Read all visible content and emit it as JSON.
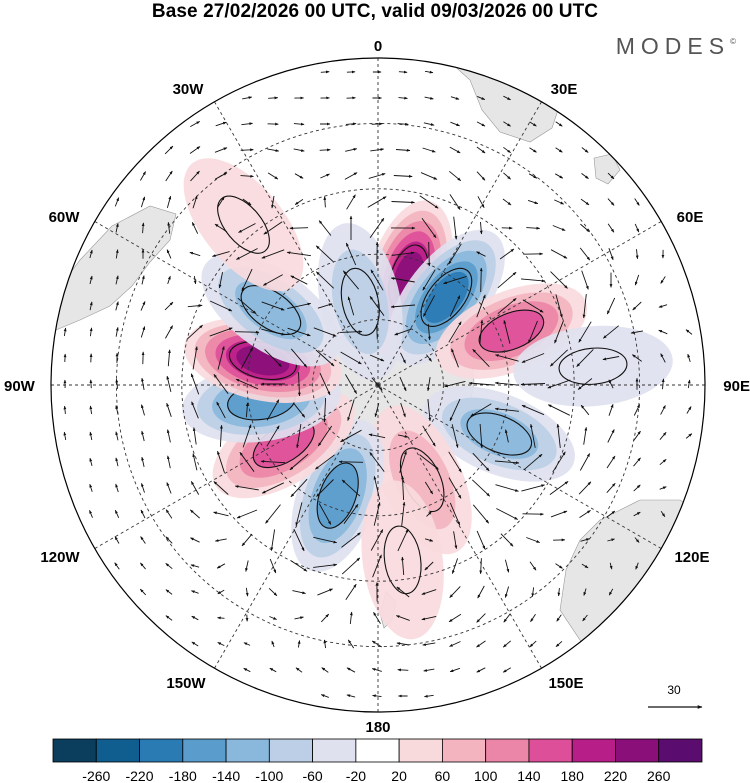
{
  "title": "Base 27/02/2026 00 UTC, valid 09/03/2026 00 UTC",
  "logo": "MODES",
  "logo_mark": "©",
  "longitude_labels": {
    "top": "0",
    "bottom": "180",
    "left": "90W",
    "right": "90E",
    "upper_left_1": "30W",
    "upper_left_2": "60W",
    "upper_right_1": "30E",
    "upper_right_2": "60E",
    "lower_left_1": "120W",
    "lower_left_2": "150W",
    "lower_right_1": "120E",
    "lower_right_2": "150E"
  },
  "vector_scale_label": "30",
  "colorbar": {
    "levels": [
      "-260",
      "-220",
      "-180",
      "-140",
      "-100",
      "-60",
      "-20",
      "20",
      "60",
      "100",
      "140",
      "180",
      "220",
      "260"
    ],
    "colors": [
      "#0b3d5c",
      "#0f5e8f",
      "#2a7ab4",
      "#5a9ccc",
      "#8ab7dc",
      "#bccfe6",
      "#dfe1ef",
      "#ffffff",
      "#f8dadd",
      "#f3b4c0",
      "#ec86a8",
      "#dd4f99",
      "#b81e88",
      "#8a0f79",
      "#5a0d6e"
    ]
  },
  "anomaly_centers": [
    {
      "lon": 16,
      "colat": 17,
      "value": 230
    },
    {
      "lon": 38,
      "colat": 17,
      "value": -200
    },
    {
      "lon": 68,
      "colat": 22,
      "value": 150
    },
    {
      "lon": 112,
      "colat": 20,
      "value": -130
    },
    {
      "lon": 155,
      "colat": 16,
      "value": 70
    },
    {
      "lon": -160,
      "colat": 18,
      "value": -160
    },
    {
      "lon": -122,
      "colat": 17,
      "value": 170
    },
    {
      "lon": -98,
      "colat": 18,
      "value": -160
    },
    {
      "lon": -78,
      "colat": 18,
      "value": 230
    },
    {
      "lon": -55,
      "colat": 20,
      "value": -130
    },
    {
      "lon": -12,
      "colat": 13,
      "value": -90
    },
    {
      "lon": -40,
      "colat": 32,
      "value": 40
    },
    {
      "lon": 85,
      "colat": 33,
      "value": -40
    },
    {
      "lon": 172,
      "colat": 27,
      "value": 40
    }
  ]
}
